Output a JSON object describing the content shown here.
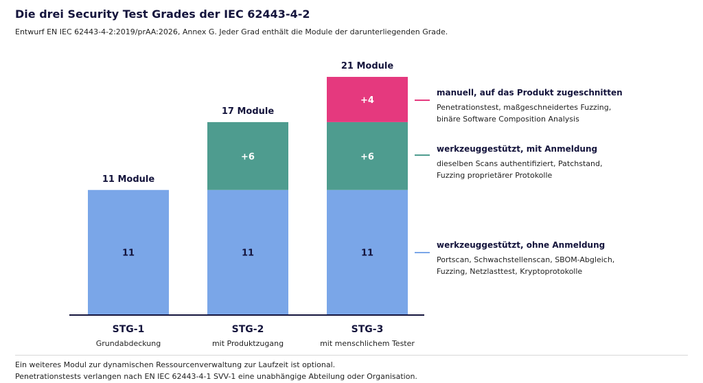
{
  "header": {
    "title": "Die drei Security Test Grades der IEC 62443-4-2",
    "subtitle": "Entwurf EN IEC 62443-4-2:2019/prAA:2026, Annex G. Jeder Grad enthält die Module der darunterliegenden Grade."
  },
  "chart_data": {
    "type": "bar",
    "stacked": true,
    "categories": [
      "STG-1",
      "STG-2",
      "STG-3"
    ],
    "category_subtitles": [
      "Grundabdeckung",
      "mit Produktzugang",
      "mit menschlichem Tester"
    ],
    "totals": [
      11,
      17,
      21
    ],
    "total_labels": [
      "11 Module",
      "17 Module",
      "21 Module"
    ],
    "series": [
      {
        "name": "werkzeuggestützt, ohne Anmeldung",
        "values": [
          11,
          11,
          11
        ],
        "labels": [
          "11",
          "11",
          "11"
        ],
        "color": "#7aa6e8",
        "description": [
          "Portscan, Schwachstellenscan, SBOM-Abgleich,",
          "Fuzzing, Netzlasttest, Kryptoprotokolle"
        ]
      },
      {
        "name": "werkzeuggestützt, mit Anmeldung",
        "values": [
          0,
          6,
          6
        ],
        "labels": [
          "",
          "+6",
          "+6"
        ],
        "color": "#4e9c8f",
        "description": [
          "dieselben Scans authentifiziert, Patchstand,",
          "Fuzzing proprietärer Protokolle"
        ]
      },
      {
        "name": "manuell, auf das Produkt zugeschnitten",
        "values": [
          0,
          0,
          4
        ],
        "labels": [
          "",
          "",
          "+4"
        ],
        "color": "#e5397e",
        "description": [
          "Penetrationstest, maßgeschneidertes Fuzzing,",
          "binäre Software Composition Analysis"
        ]
      }
    ],
    "ylim": [
      0,
      21
    ],
    "grid": false,
    "legend": "right"
  },
  "footer": {
    "line1": "Ein weiteres Modul zur dynamischen Ressourcenverwaltung zur Laufzeit ist optional.",
    "line2": "Penetrationstests verlangen nach EN IEC 62443-4-1 SVV-1 eine unabhängige Abteilung oder Organisation."
  }
}
